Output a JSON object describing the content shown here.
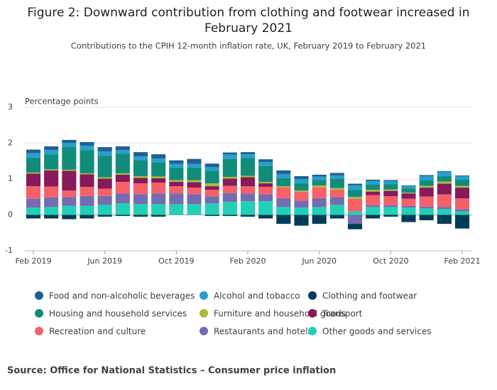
{
  "chart_data": {
    "type": "stacked-bar",
    "title": "Figure 2: Downward contribution from clothing and footwear increased in February 2021",
    "subtitle": "Contributions to the CPIH 12-month inflation rate, UK, February 2019 to February 2021",
    "y_label": "Percentage points",
    "source": "Source: Office for National Statistics – Consumer price inflation",
    "categories": [
      "Feb 2019",
      null,
      null,
      null,
      "Jun 2019",
      null,
      null,
      null,
      "Oct 2019",
      null,
      null,
      null,
      "Feb 2020",
      null,
      null,
      null,
      "Jun 2020",
      null,
      null,
      null,
      "Oct 2020",
      null,
      null,
      null,
      "Feb 2021"
    ],
    "ylim": [
      -1,
      3
    ],
    "yticks": [
      -1,
      0,
      1,
      2,
      3
    ],
    "grid": true,
    "series": [
      {
        "name": "Food and non-alcoholic beverages",
        "color": "#206095",
        "values": [
          0.1,
          0.1,
          0.08,
          0.1,
          0.12,
          0.1,
          0.12,
          0.12,
          0.1,
          0.14,
          0.1,
          0.06,
          0.06,
          0.08,
          0.1,
          0.08,
          0.05,
          0.07,
          0.05,
          0.03,
          0.03,
          0.02,
          0.03,
          0.02,
          0.02
        ]
      },
      {
        "name": "Alcohol and tobacco",
        "color": "#27a0cc",
        "values": [
          0.12,
          0.12,
          0.12,
          0.12,
          0.12,
          0.1,
          0.1,
          0.1,
          0.1,
          0.1,
          0.1,
          0.12,
          0.1,
          0.1,
          0.12,
          0.12,
          0.1,
          0.1,
          0.12,
          0.1,
          0.08,
          0.06,
          0.12,
          0.12,
          0.1
        ]
      },
      {
        "name": "Clothing and footwear",
        "color": "#003c57",
        "values": [
          -0.1,
          -0.1,
          -0.12,
          -0.1,
          -0.05,
          -0.03,
          -0.05,
          -0.05,
          0,
          0,
          -0.03,
          -0.03,
          -0.05,
          -0.1,
          -0.25,
          -0.3,
          -0.25,
          -0.1,
          -0.15,
          -0.1,
          -0.05,
          -0.2,
          -0.15,
          -0.25,
          -0.38
        ]
      },
      {
        "name": "Housing and household services",
        "color": "#118c7b",
        "values": [
          0.42,
          0.42,
          0.63,
          0.65,
          0.6,
          0.55,
          0.45,
          0.4,
          0.35,
          0.35,
          0.35,
          0.5,
          0.5,
          0.45,
          0.22,
          0.2,
          0.15,
          0.25,
          0.2,
          0.15,
          0.15,
          0.12,
          0.15,
          0.15,
          0.17
        ]
      },
      {
        "name": "Furniture and household goods",
        "color": "#a8bd3a",
        "values": [
          0.03,
          0.03,
          0.03,
          0.03,
          0.04,
          0.04,
          0.05,
          0.05,
          0.05,
          0.06,
          0.08,
          0.05,
          0.04,
          0.04,
          0.03,
          0.03,
          0.05,
          0.05,
          0.05,
          0.05,
          0.04,
          0.02,
          0.05,
          0.06,
          0.05
        ]
      },
      {
        "name": "Transport",
        "color": "#871a5b",
        "values": [
          0.35,
          0.45,
          0.55,
          0.35,
          0.28,
          0.2,
          0.15,
          0.12,
          0.12,
          0.15,
          0.1,
          0.2,
          0.25,
          0.1,
          0,
          0,
          0,
          0,
          0,
          0.1,
          0.15,
          0.15,
          0.25,
          0.3,
          0.3
        ]
      },
      {
        "name": "Recreation and culture",
        "color": "#f66068",
        "values": [
          0.35,
          0.3,
          0.18,
          0.25,
          0.2,
          0.32,
          0.3,
          0.3,
          0.2,
          0.18,
          0.18,
          0.2,
          0.2,
          0.2,
          0.3,
          0.25,
          0.3,
          0.2,
          0.35,
          0.28,
          0.25,
          0.2,
          0.28,
          0.35,
          0.3
        ]
      },
      {
        "name": "Restaurants and hotels",
        "color": "#746cb1",
        "values": [
          0.25,
          0.27,
          0.25,
          0.28,
          0.25,
          0.28,
          0.28,
          0.3,
          0.3,
          0.28,
          0.2,
          0.25,
          0.22,
          0.2,
          0.25,
          0.2,
          0.25,
          0.22,
          -0.25,
          0.05,
          0.05,
          0.05,
          0.05,
          0.06,
          0.06
        ]
      },
      {
        "name": "Other goods and services",
        "color": "#22d0b6",
        "values": [
          0.2,
          0.22,
          0.25,
          0.25,
          0.28,
          0.32,
          0.3,
          0.3,
          0.3,
          0.3,
          0.32,
          0.36,
          0.38,
          0.38,
          0.22,
          0.2,
          0.22,
          0.28,
          0.1,
          0.22,
          0.22,
          0.2,
          0.18,
          0.16,
          0.1
        ]
      }
    ]
  }
}
